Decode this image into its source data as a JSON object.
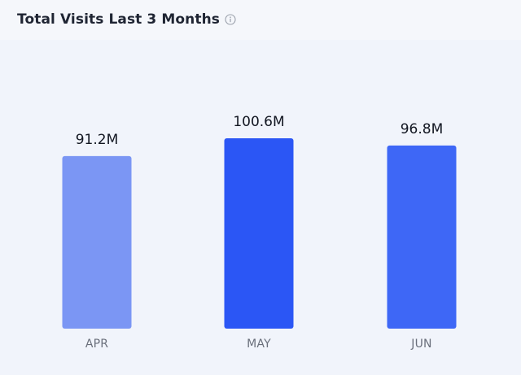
{
  "header": {
    "title": "Total Visits Last 3 Months",
    "info_icon": "info-icon"
  },
  "chart_data": {
    "type": "bar",
    "title": "Total Visits Last 3 Months",
    "categories": [
      "APR",
      "MAY",
      "JUN"
    ],
    "values": [
      91.2,
      100.6,
      96.8
    ],
    "value_labels": [
      "91.2M",
      "100.6M",
      "96.8M"
    ],
    "unit": "M",
    "colors": [
      "#7b96f4",
      "#2b56f5",
      "#3e67f6"
    ],
    "xlabel": "",
    "ylabel": "",
    "ylim": [
      0,
      100.6
    ],
    "grid": false,
    "legend": "none"
  }
}
